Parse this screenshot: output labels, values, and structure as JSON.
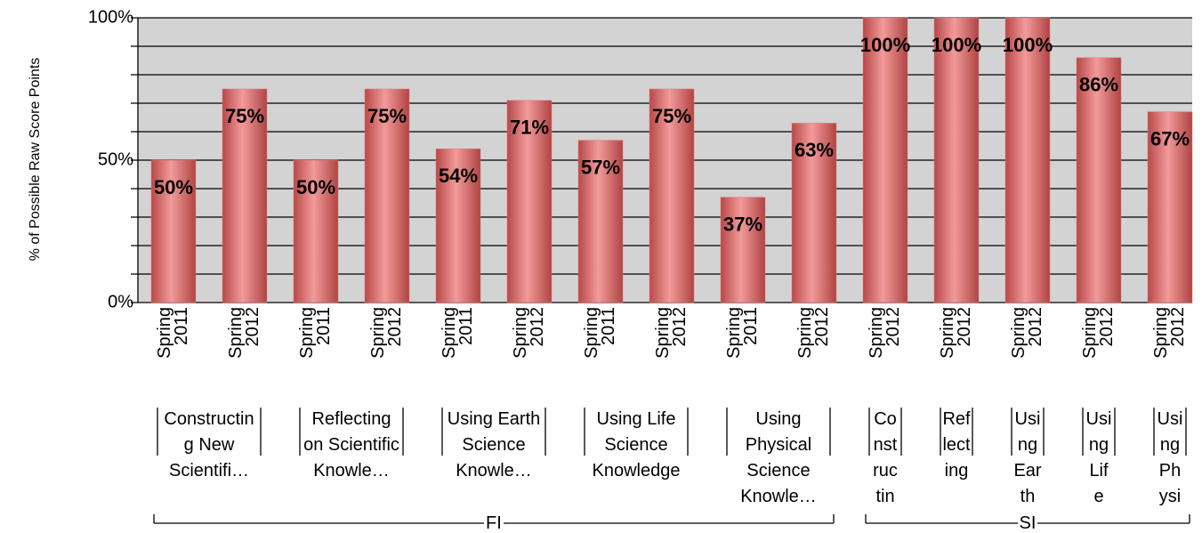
{
  "chart_data": {
    "type": "bar",
    "y_axis_label": "% of Possible Raw Score Points",
    "groups": [
      {
        "label": "FI",
        "subgroups": [
          {
            "label": "Constructing New Scientifi…",
            "categories": [
              "Spring 2011",
              "Spring 2012"
            ]
          },
          {
            "label": "Reflecting on Scientific Knowle…",
            "categories": [
              "Spring 2011",
              "Spring 2012"
            ]
          },
          {
            "label": "Using Earth Science Knowle…",
            "categories": [
              "Spring 2011",
              "Spring 2012"
            ]
          },
          {
            "label": "Using Life Science Knowledge",
            "categories": [
              "Spring 2011",
              "Spring 2012"
            ]
          },
          {
            "label": "Using Physical Science Knowle…",
            "categories": [
              "Spring 2011",
              "Spring 2012"
            ]
          }
        ]
      },
      {
        "label": "SI",
        "subgroups": [
          {
            "label": "Constructin",
            "categories": [
              "Spring 2012"
            ]
          },
          {
            "label": "Reflecting",
            "categories": [
              "Spring 2012"
            ]
          },
          {
            "label": "Using Earth",
            "categories": [
              "Spring 2012"
            ]
          },
          {
            "label": "Using Life",
            "categories": [
              "Spring 2012"
            ]
          },
          {
            "label": "Using Physi",
            "categories": [
              "Spring 2012"
            ]
          }
        ]
      }
    ],
    "values": [
      50,
      75,
      50,
      75,
      54,
      71,
      57,
      75,
      37,
      63,
      100,
      100,
      100,
      86,
      67
    ],
    "value_labels": [
      "50%",
      "75%",
      "50%",
      "75%",
      "54%",
      "71%",
      "57%",
      "75%",
      "37%",
      "63%",
      "100%",
      "100%",
      "100%",
      "86%",
      "67%"
    ],
    "color": "#e07a7a",
    "ylim": [
      0,
      100
    ],
    "yticks": [
      {
        "value": 0,
        "label": "0%"
      },
      {
        "value": 50,
        "label": "50%"
      },
      {
        "value": 100,
        "label": "100%"
      }
    ],
    "minor_yticks": [
      10,
      20,
      30,
      40,
      60,
      70,
      80,
      90
    ],
    "grid": true
  }
}
